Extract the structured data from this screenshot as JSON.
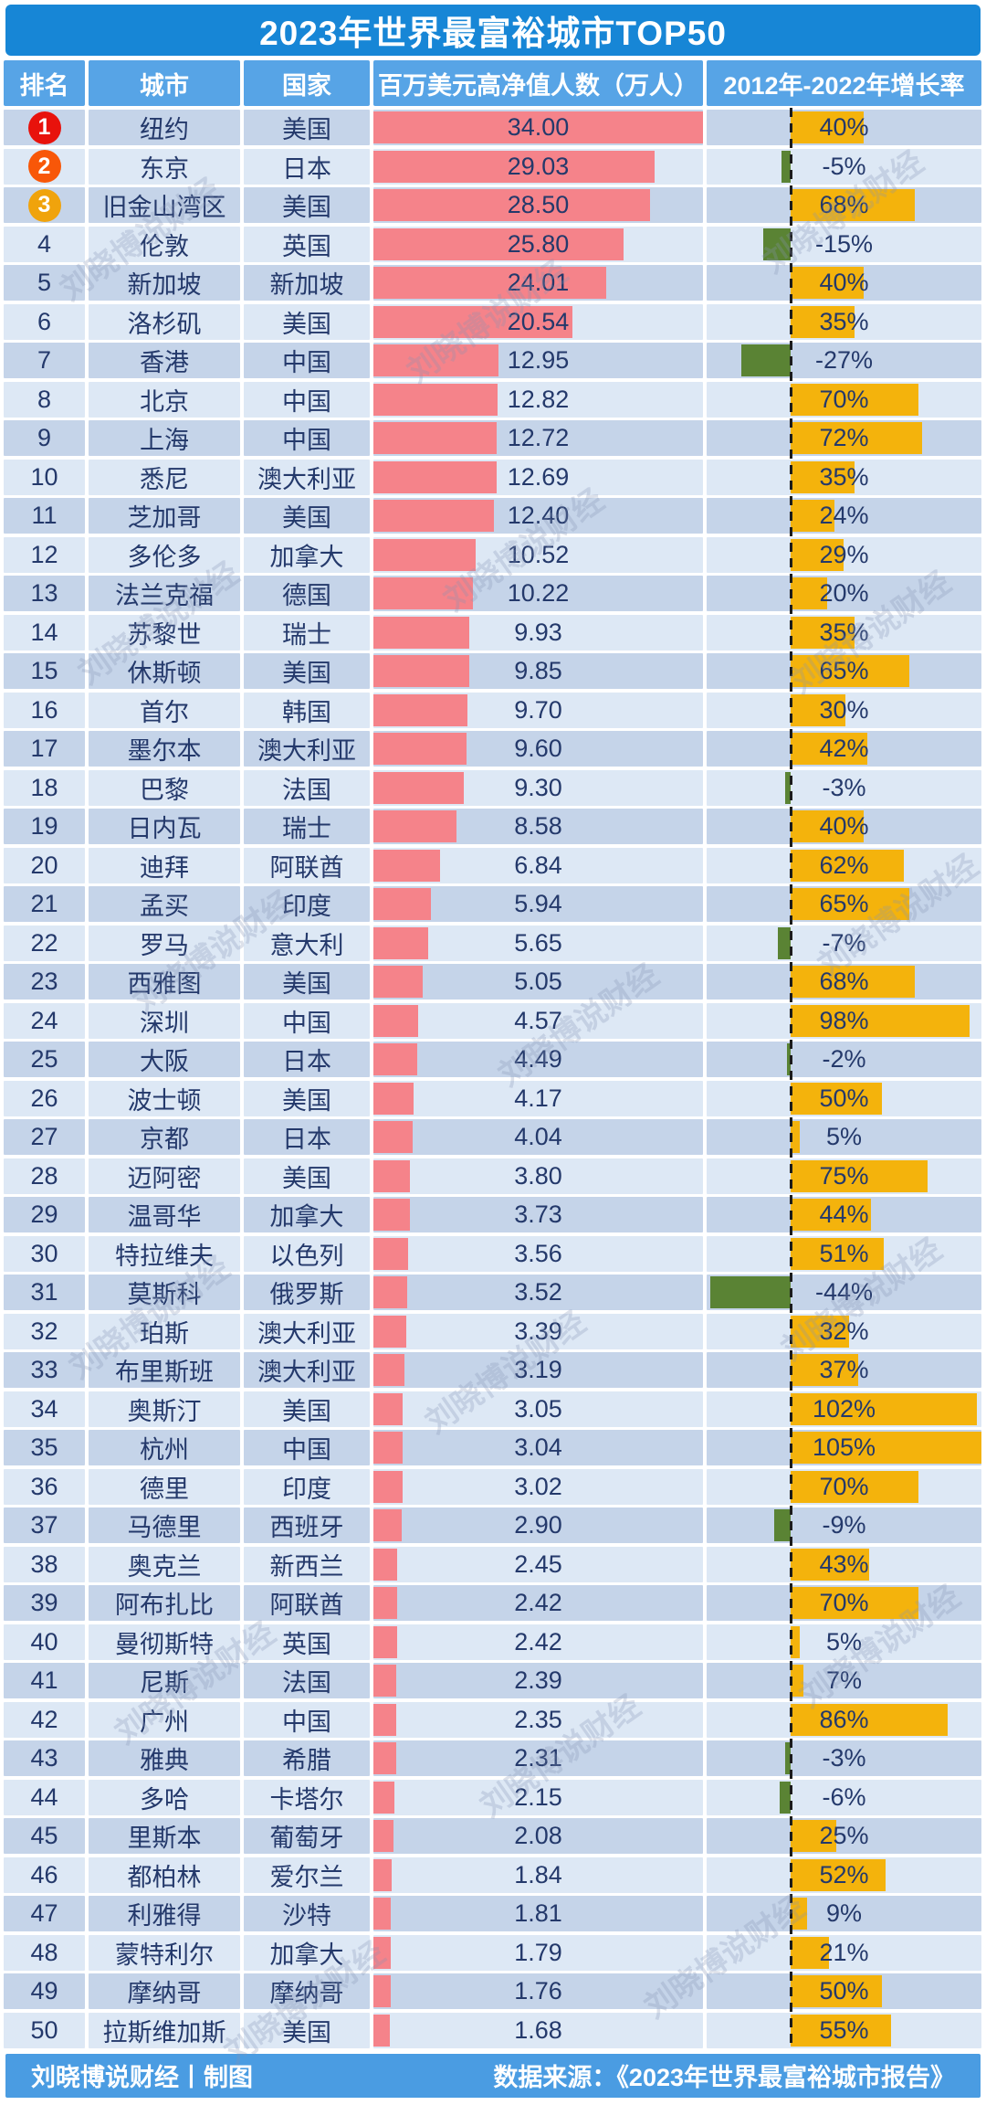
{
  "title": "2023年世界最富裕城市TOP50",
  "watermark": "刘晓博说财经",
  "footer": {
    "left": "刘晓博说财经丨制图",
    "right": "数据来源：《2023年世界最富裕城市报告》"
  },
  "colors": {
    "title_bg": "#1786d6",
    "header_bg": "#57a4e6",
    "row_odd": "#c5d4e9",
    "row_even": "#dde8f5",
    "bar_pink": "#f5838a",
    "bar_orange": "#f4b30c",
    "bar_green": "#5a8334",
    "text_navy": "#24396b",
    "badge_1": "#e8120c",
    "badge_2": "#f85708",
    "badge_3": "#f0a30c",
    "footer_bg": "#4a9ce2"
  },
  "chart_data": {
    "type": "table",
    "title": "2023年世界最富裕城市TOP50",
    "columns": [
      "排名",
      "城市",
      "国家",
      "百万美元高净值人数（万人）",
      "2012年-2022年增长率"
    ],
    "hnwi_axis_max": 34.0,
    "growth_axis": {
      "unit": "%",
      "zero_line": true,
      "positive_color": "orange",
      "negative_color": "green",
      "approx_range": [
        -46,
        105
      ]
    },
    "rows": [
      {
        "rank": 1,
        "city": "纽约",
        "country": "美国",
        "hnwi": "34.00",
        "growth": 40
      },
      {
        "rank": 2,
        "city": "东京",
        "country": "日本",
        "hnwi": "29.03",
        "growth": -5
      },
      {
        "rank": 3,
        "city": "旧金山湾区",
        "country": "美国",
        "hnwi": "28.50",
        "growth": 68
      },
      {
        "rank": 4,
        "city": "伦敦",
        "country": "英国",
        "hnwi": "25.80",
        "growth": -15
      },
      {
        "rank": 5,
        "city": "新加坡",
        "country": "新加坡",
        "hnwi": "24.01",
        "growth": 40
      },
      {
        "rank": 6,
        "city": "洛杉矶",
        "country": "美国",
        "hnwi": "20.54",
        "growth": 35
      },
      {
        "rank": 7,
        "city": "香港",
        "country": "中国",
        "hnwi": "12.95",
        "growth": -27
      },
      {
        "rank": 8,
        "city": "北京",
        "country": "中国",
        "hnwi": "12.82",
        "growth": 70
      },
      {
        "rank": 9,
        "city": "上海",
        "country": "中国",
        "hnwi": "12.72",
        "growth": 72
      },
      {
        "rank": 10,
        "city": "悉尼",
        "country": "澳大利亚",
        "hnwi": "12.69",
        "growth": 35
      },
      {
        "rank": 11,
        "city": "芝加哥",
        "country": "美国",
        "hnwi": "12.40",
        "growth": 24
      },
      {
        "rank": 12,
        "city": "多伦多",
        "country": "加拿大",
        "hnwi": "10.52",
        "growth": 29
      },
      {
        "rank": 13,
        "city": "法兰克福",
        "country": "德国",
        "hnwi": "10.22",
        "growth": 20
      },
      {
        "rank": 14,
        "city": "苏黎世",
        "country": "瑞士",
        "hnwi": "9.93",
        "growth": 35
      },
      {
        "rank": 15,
        "city": "休斯顿",
        "country": "美国",
        "hnwi": "9.85",
        "growth": 65
      },
      {
        "rank": 16,
        "city": "首尔",
        "country": "韩国",
        "hnwi": "9.70",
        "growth": 30
      },
      {
        "rank": 17,
        "city": "墨尔本",
        "country": "澳大利亚",
        "hnwi": "9.60",
        "growth": 42
      },
      {
        "rank": 18,
        "city": "巴黎",
        "country": "法国",
        "hnwi": "9.30",
        "growth": -3
      },
      {
        "rank": 19,
        "city": "日内瓦",
        "country": "瑞士",
        "hnwi": "8.58",
        "growth": 40
      },
      {
        "rank": 20,
        "city": "迪拜",
        "country": "阿联酋",
        "hnwi": "6.84",
        "growth": 62
      },
      {
        "rank": 21,
        "city": "孟买",
        "country": "印度",
        "hnwi": "5.94",
        "growth": 65
      },
      {
        "rank": 22,
        "city": "罗马",
        "country": "意大利",
        "hnwi": "5.65",
        "growth": -7
      },
      {
        "rank": 23,
        "city": "西雅图",
        "country": "美国",
        "hnwi": "5.05",
        "growth": 68
      },
      {
        "rank": 24,
        "city": "深圳",
        "country": "中国",
        "hnwi": "4.57",
        "growth": 98
      },
      {
        "rank": 25,
        "city": "大阪",
        "country": "日本",
        "hnwi": "4.49",
        "growth": -2
      },
      {
        "rank": 26,
        "city": "波士顿",
        "country": "美国",
        "hnwi": "4.17",
        "growth": 50
      },
      {
        "rank": 27,
        "city": "京都",
        "country": "日本",
        "hnwi": "4.04",
        "growth": 5
      },
      {
        "rank": 28,
        "city": "迈阿密",
        "country": "美国",
        "hnwi": "3.80",
        "growth": 75
      },
      {
        "rank": 29,
        "city": "温哥华",
        "country": "加拿大",
        "hnwi": "3.73",
        "growth": 44
      },
      {
        "rank": 30,
        "city": "特拉维夫",
        "country": "以色列",
        "hnwi": "3.56",
        "growth": 51
      },
      {
        "rank": 31,
        "city": "莫斯科",
        "country": "俄罗斯",
        "hnwi": "3.52",
        "growth": -44
      },
      {
        "rank": 32,
        "city": "珀斯",
        "country": "澳大利亚",
        "hnwi": "3.39",
        "growth": 32
      },
      {
        "rank": 33,
        "city": "布里斯班",
        "country": "澳大利亚",
        "hnwi": "3.19",
        "growth": 37
      },
      {
        "rank": 34,
        "city": "奥斯汀",
        "country": "美国",
        "hnwi": "3.05",
        "growth": 102
      },
      {
        "rank": 35,
        "city": "杭州",
        "country": "中国",
        "hnwi": "3.04",
        "growth": 105
      },
      {
        "rank": 36,
        "city": "德里",
        "country": "印度",
        "hnwi": "3.02",
        "growth": 70
      },
      {
        "rank": 37,
        "city": "马德里",
        "country": "西班牙",
        "hnwi": "2.90",
        "growth": -9
      },
      {
        "rank": 38,
        "city": "奥克兰",
        "country": "新西兰",
        "hnwi": "2.45",
        "growth": 43
      },
      {
        "rank": 39,
        "city": "阿布扎比",
        "country": "阿联酋",
        "hnwi": "2.42",
        "growth": 70
      },
      {
        "rank": 40,
        "city": "曼彻斯特",
        "country": "英国",
        "hnwi": "2.42",
        "growth": 5
      },
      {
        "rank": 41,
        "city": "尼斯",
        "country": "法国",
        "hnwi": "2.39",
        "growth": 7
      },
      {
        "rank": 42,
        "city": "广州",
        "country": "中国",
        "hnwi": "2.35",
        "growth": 86
      },
      {
        "rank": 43,
        "city": "雅典",
        "country": "希腊",
        "hnwi": "2.31",
        "growth": -3
      },
      {
        "rank": 44,
        "city": "多哈",
        "country": "卡塔尔",
        "hnwi": "2.15",
        "growth": -6
      },
      {
        "rank": 45,
        "city": "里斯本",
        "country": "葡萄牙",
        "hnwi": "2.08",
        "growth": 25
      },
      {
        "rank": 46,
        "city": "都柏林",
        "country": "爱尔兰",
        "hnwi": "1.84",
        "growth": 52
      },
      {
        "rank": 47,
        "city": "利雅得",
        "country": "沙特",
        "hnwi": "1.81",
        "growth": 9
      },
      {
        "rank": 48,
        "city": "蒙特利尔",
        "country": "加拿大",
        "hnwi": "1.79",
        "growth": 21
      },
      {
        "rank": 49,
        "city": "摩纳哥",
        "country": "摩纳哥",
        "hnwi": "1.76",
        "growth": 50
      },
      {
        "rank": 50,
        "city": "拉斯维加斯",
        "country": "美国",
        "hnwi": "1.68",
        "growth": 55
      }
    ]
  }
}
